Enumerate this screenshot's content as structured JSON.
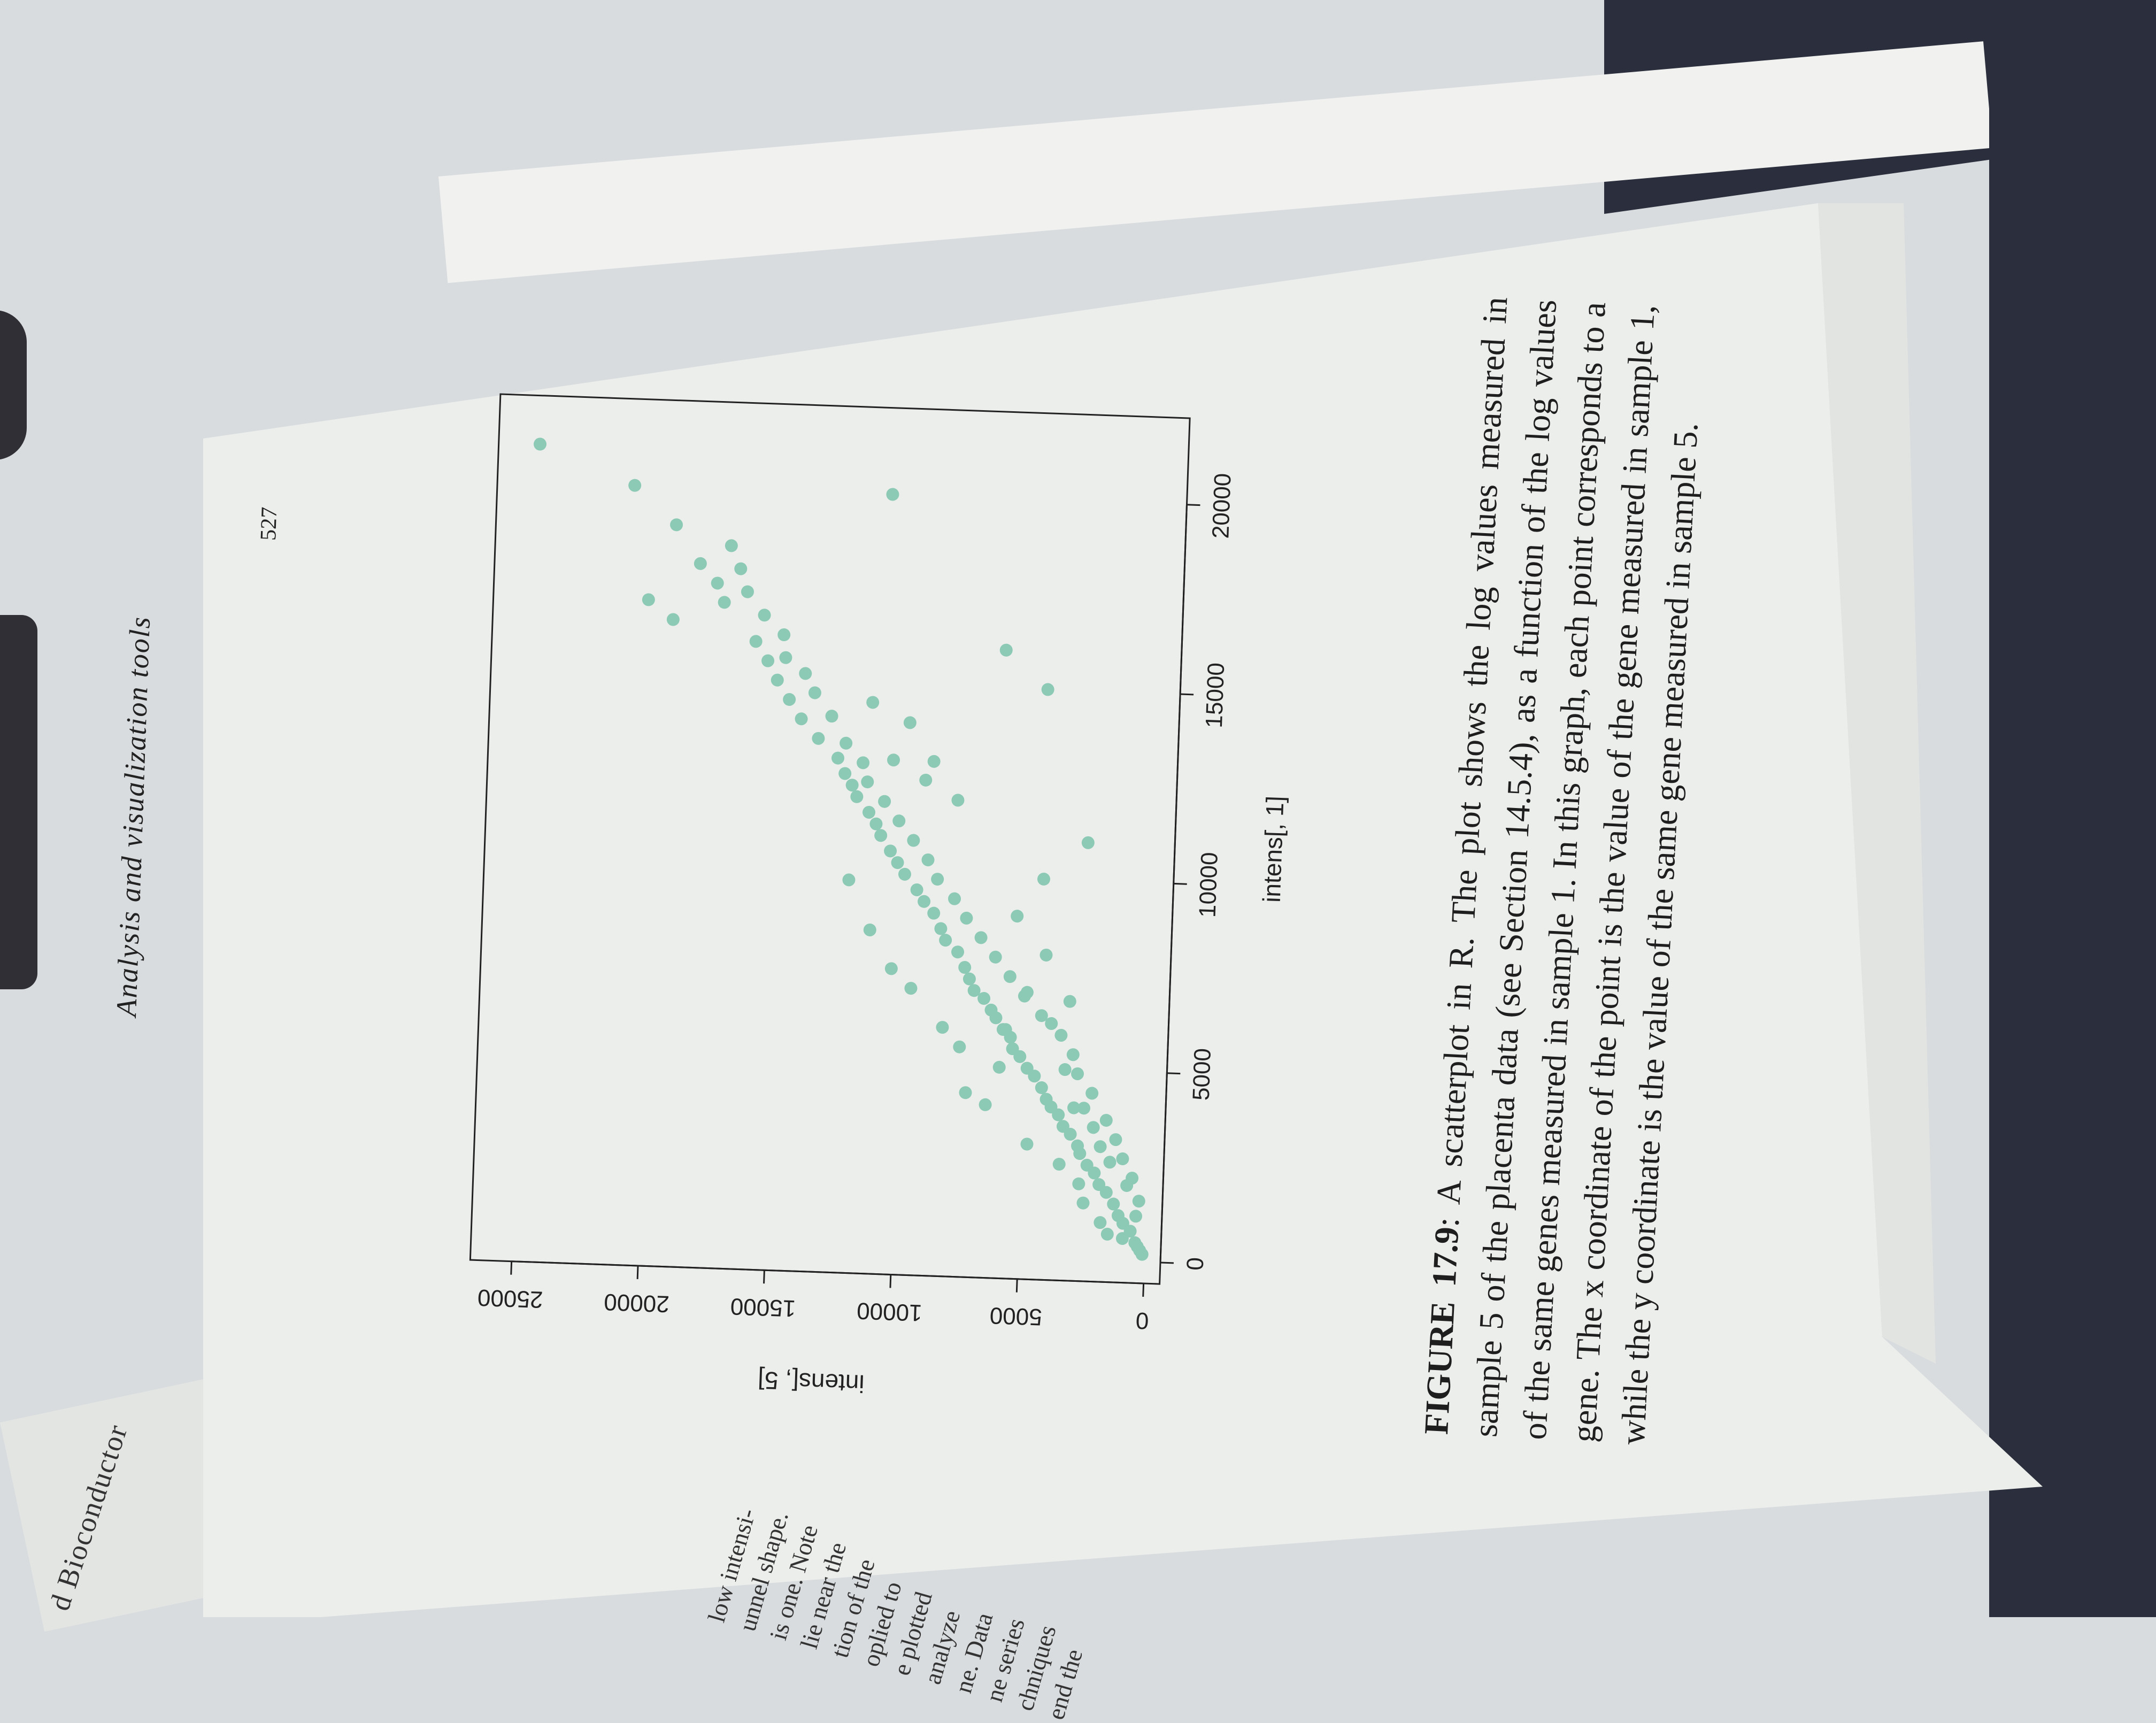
{
  "header": {
    "running_title": "Analysis and visualization tools",
    "page_number": "527",
    "left_running_title": "d Bioconductor"
  },
  "left_page_fragments": [
    "low intensi-",
    "unnel shape.",
    "is one. Note",
    "lie near the",
    "tion of the",
    "oplied to",
    "e plotted",
    "analyze",
    "ne. Data",
    "ne series",
    "chniques",
    "end the"
  ],
  "chart_data": {
    "type": "scatter",
    "xlabel": "intens[, 1]",
    "ylabel": "intens[, 5]",
    "xlim": [
      0,
      22000
    ],
    "ylim": [
      0,
      26000
    ],
    "xticks": [
      "0",
      "5000",
      "10000",
      "15000",
      "20000"
    ],
    "yticks": [
      "0",
      "5000",
      "10000",
      "15000",
      "20000",
      "25000"
    ],
    "point_color": "#8ccab5",
    "points": [
      [
        300,
        200
      ],
      [
        500,
        400
      ],
      [
        800,
        600
      ],
      [
        1000,
        900
      ],
      [
        1200,
        1100
      ],
      [
        1500,
        1300
      ],
      [
        1800,
        1600
      ],
      [
        2000,
        1900
      ],
      [
        2300,
        2100
      ],
      [
        2500,
        2400
      ],
      [
        2800,
        2700
      ],
      [
        3000,
        2800
      ],
      [
        3300,
        3100
      ],
      [
        3500,
        3400
      ],
      [
        3800,
        3600
      ],
      [
        4000,
        3900
      ],
      [
        4200,
        4100
      ],
      [
        4500,
        4300
      ],
      [
        4800,
        4600
      ],
      [
        5000,
        4900
      ],
      [
        5300,
        5200
      ],
      [
        5500,
        5500
      ],
      [
        5800,
        5600
      ],
      [
        6000,
        5900
      ],
      [
        6300,
        6200
      ],
      [
        6500,
        6400
      ],
      [
        6800,
        6700
      ],
      [
        7000,
        7100
      ],
      [
        7300,
        7300
      ],
      [
        7600,
        7500
      ],
      [
        8000,
        7800
      ],
      [
        8300,
        8300
      ],
      [
        8600,
        8500
      ],
      [
        9000,
        8800
      ],
      [
        9300,
        9200
      ],
      [
        9600,
        9500
      ],
      [
        10000,
        10000
      ],
      [
        10300,
        10300
      ],
      [
        10600,
        10600
      ],
      [
        11000,
        11000
      ],
      [
        11300,
        11200
      ],
      [
        11600,
        11500
      ],
      [
        12000,
        12000
      ],
      [
        12300,
        12200
      ],
      [
        12600,
        12500
      ],
      [
        13000,
        12800
      ],
      [
        13500,
        13600
      ],
      [
        14000,
        14300
      ],
      [
        14500,
        14800
      ],
      [
        15000,
        15300
      ],
      [
        15500,
        15700
      ],
      [
        16000,
        16200
      ],
      [
        17000,
        17500
      ],
      [
        17500,
        17800
      ],
      [
        18000,
        18500
      ],
      [
        19000,
        19500
      ],
      [
        21000,
        25000
      ],
      [
        20000,
        21200
      ],
      [
        16500,
        19500
      ],
      [
        17000,
        20500
      ],
      [
        1200,
        400
      ],
      [
        2000,
        800
      ],
      [
        2600,
        1500
      ],
      [
        3500,
        2200
      ],
      [
        4000,
        2600
      ],
      [
        5000,
        3400
      ],
      [
        6200,
        4000
      ],
      [
        6800,
        3300
      ],
      [
        700,
        1500
      ],
      [
        1500,
        2500
      ],
      [
        2500,
        3500
      ],
      [
        3000,
        4800
      ],
      [
        4000,
        6500
      ],
      [
        4300,
        7300
      ],
      [
        5500,
        7600
      ],
      [
        6000,
        8300
      ],
      [
        7000,
        9600
      ],
      [
        7500,
        10400
      ],
      [
        8500,
        11300
      ],
      [
        9800,
        12200
      ],
      [
        12500,
        9300
      ],
      [
        13000,
        10600
      ],
      [
        14500,
        11500
      ],
      [
        14000,
        10000
      ],
      [
        16000,
        6300
      ],
      [
        15000,
        4600
      ],
      [
        20000,
        11000
      ],
      [
        11000,
        2800
      ],
      [
        10000,
        4500
      ],
      [
        9000,
        5500
      ],
      [
        8000,
        4300
      ],
      [
        12000,
        8000
      ],
      [
        13000,
        9000
      ],
      [
        7000,
        5000
      ],
      [
        6000,
        5800
      ],
      [
        5000,
        6000
      ],
      [
        4000,
        3000
      ],
      [
        3000,
        1900
      ],
      [
        2000,
        2700
      ],
      [
        1000,
        1800
      ],
      [
        600,
        900
      ],
      [
        400,
        300
      ],
      [
        200,
        100
      ],
      [
        1600,
        300
      ],
      [
        2200,
        600
      ],
      [
        2700,
        1000
      ],
      [
        3200,
        1300
      ],
      [
        3700,
        1700
      ],
      [
        4400,
        2300
      ],
      [
        4900,
        2900
      ],
      [
        5400,
        3100
      ],
      [
        5900,
        3600
      ],
      [
        6400,
        4400
      ],
      [
        6900,
        5100
      ],
      [
        7400,
        5700
      ],
      [
        7900,
        6300
      ],
      [
        8400,
        6900
      ],
      [
        8900,
        7500
      ],
      [
        9400,
        8000
      ],
      [
        9900,
        8700
      ],
      [
        10400,
        9100
      ],
      [
        10900,
        9700
      ],
      [
        11400,
        10300
      ],
      [
        11900,
        10900
      ],
      [
        12400,
        11600
      ],
      [
        12900,
        11800
      ],
      [
        13400,
        12500
      ],
      [
        14100,
        13100
      ],
      [
        14700,
        13800
      ],
      [
        15200,
        14200
      ],
      [
        15600,
        15000
      ],
      [
        16200,
        15100
      ],
      [
        16700,
        15900
      ],
      [
        17300,
        16600
      ],
      [
        17900,
        16900
      ],
      [
        18500,
        17300
      ]
    ]
  },
  "caption": {
    "label": "FIGURE 17.9",
    "text": ": A scatterplot in R. The plot shows the log values measured in sample 5 of the placenta data (see Section 14.5.4), as a function of the log values of the same genes measured in sample 1. In this graph, each point corresponds to a gene. The x coordinate of the point is the value of the gene measured in sample 1, while the y coordinate is the value of the same gene measured in sample 5."
  },
  "colors": {
    "page": "#eceeeb",
    "ink": "#2a2a2a",
    "cover": "#2b2f3d",
    "desk": "#d9dcdf"
  }
}
